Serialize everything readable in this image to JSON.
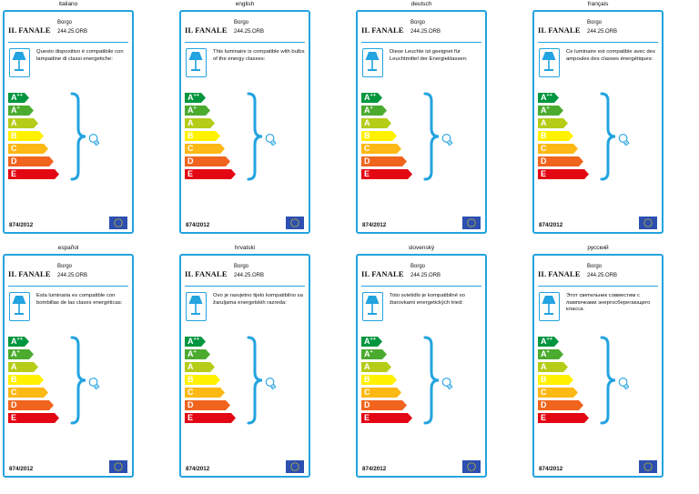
{
  "cards": [
    {
      "language": "italiano",
      "brand": "IL FANALE",
      "product_name": "Borgo",
      "product_code": "244.25.ORB",
      "description": "Questo dispositivo è compatibile con lampadine di classi energetiche:",
      "regulation": "874/2012"
    },
    {
      "language": "english",
      "brand": "IL FANALE",
      "product_name": "Borgo",
      "product_code": "244.25.ORB",
      "description": "This luminaire is compatible with bulbs of the energy classes:",
      "regulation": "874/2012"
    },
    {
      "language": "deutsch",
      "brand": "IL FANALE",
      "product_name": "Borgo",
      "product_code": "244.25.ORB",
      "description": "Diese Leuchte ist geeignet für Leuchtmittel der Energieklassen:",
      "regulation": "874/2012"
    },
    {
      "language": "français",
      "brand": "IL FANALE",
      "product_name": "Borgo",
      "product_code": "244.25.ORB",
      "description": "Ce luminaire est compatible avec des ampoules des classes énergétiques:",
      "regulation": "874/2012"
    },
    {
      "language": "español",
      "brand": "IL FANALE",
      "product_name": "Borgo",
      "product_code": "244.25.ORB",
      "description": "Esta luminaria es compatible con bombillas de las clases energéticas:",
      "regulation": "874/2012"
    },
    {
      "language": "hrvatski",
      "brand": "IL FANALE",
      "product_name": "Borgo",
      "product_code": "244.25.ORB",
      "description": "Ovo je rasvjetno tijelo kompatibilno sa žaruljama energetskih razreda:",
      "regulation": "874/2012"
    },
    {
      "language": "slovenský",
      "brand": "IL FANALE",
      "product_name": "Borgo",
      "product_code": "244.25.ORB",
      "description": "Toto svietidlo je kompatibilné so žiarovkami energetických tried:",
      "regulation": "874/2012"
    },
    {
      "language": "русский",
      "brand": "IL FANALE",
      "product_name": "Borgo",
      "product_code": "244.25.ORB",
      "description": "Этот светильник совместим с лампочками энергосберегающего класса.",
      "regulation": "874/2012"
    }
  ],
  "energy_classes": [
    {
      "base": "A",
      "sup": "++",
      "color": "#00963f"
    },
    {
      "base": "A",
      "sup": "+",
      "color": "#4bab2f"
    },
    {
      "base": "A",
      "sup": "",
      "color": "#b5cc18"
    },
    {
      "base": "B",
      "sup": "",
      "color": "#fff100"
    },
    {
      "base": "C",
      "sup": "",
      "color": "#fcb814"
    },
    {
      "base": "D",
      "sup": "",
      "color": "#f0641e"
    },
    {
      "base": "E",
      "sup": "",
      "color": "#e30613"
    }
  ],
  "icons": {
    "lamp": "table-lamp-icon",
    "bulb": "light-bulb-icon",
    "flag": "eu-flag-icon"
  },
  "accent_color": "#23a3e0"
}
